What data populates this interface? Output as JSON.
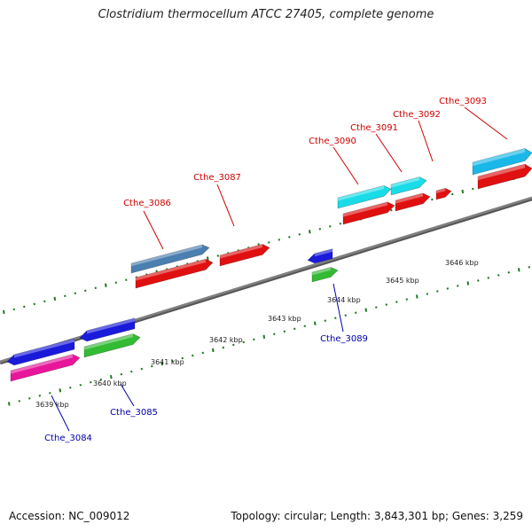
{
  "header": {
    "title": "Clostridium thermocellum ATCC 27405, complete genome"
  },
  "footer": {
    "accession": "Accession: NC_009012",
    "summary": "Topology: circular; Length: 3,843,301 bp; Genes: 3,259"
  },
  "colors": {
    "backbone": "#808080",
    "tick_marks": "#1f7a1f",
    "forward_label": "#cc0000",
    "reverse_label": "#0000aa"
  },
  "kbp_labels": [
    "3639 kbp",
    "3640 kbp",
    "3641 kbp",
    "3642 kbp",
    "3643 kbp",
    "3644 kbp",
    "3645 kbp",
    "3646 kbp"
  ],
  "genes": [
    {
      "label": "Cthe_3084",
      "strand": "reverse",
      "color": "#1a1adb",
      "cog_color": "#e8169a"
    },
    {
      "label": "Cthe_3085",
      "strand": "reverse",
      "color": "#1a1adb",
      "cog_color": "#33bb33"
    },
    {
      "label": "Cthe_3086",
      "strand": "forward",
      "color": "#4a7fb0",
      "cog_color": "#e01010"
    },
    {
      "label": "Cthe_3087",
      "strand": "forward",
      "color": "#e01010",
      "cog_color": ""
    },
    {
      "label": "Cthe_3089",
      "strand": "reverse",
      "color": "#1a1adb",
      "cog_color": "#33bb33"
    },
    {
      "label": "Cthe_3090",
      "strand": "forward",
      "color": "#19dce8",
      "cog_color": "#e01010"
    },
    {
      "label": "Cthe_3091",
      "strand": "forward",
      "color": "#19dce8",
      "cog_color": "#e01010"
    },
    {
      "label": "Cthe_3092",
      "strand": "forward",
      "color": "#e01010",
      "cog_color": ""
    },
    {
      "label": "Cthe_3093",
      "strand": "forward",
      "color": "#19b8e8",
      "cog_color": "#e01010"
    }
  ]
}
